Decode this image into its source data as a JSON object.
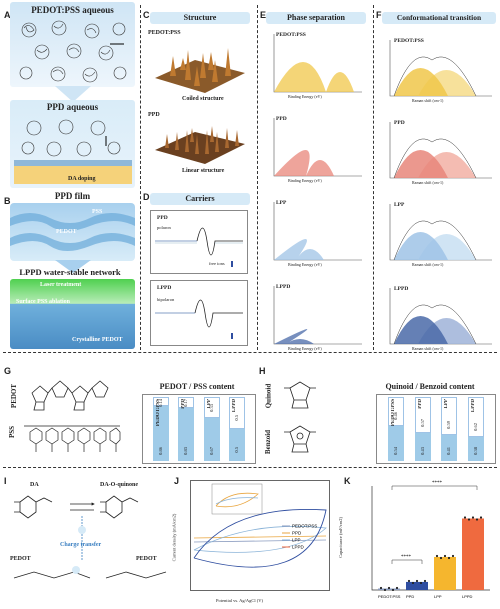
{
  "panelA": {
    "letter": "A",
    "title": "PEDOT:PSS aqueous",
    "ppd_label": "PPD aqueous",
    "da_label": "DA doping"
  },
  "panelB": {
    "letter": "B",
    "title": "PPD film",
    "pss": "PSS",
    "pedot": "PEDOT",
    "network": "LPPD water-stable network",
    "laser": "Laser treatment",
    "ablation": "Surface PSS ablation",
    "crystalline": "Crystalline PEDOT"
  },
  "panelC": {
    "letter": "C",
    "title": "Structure",
    "pedot_pss": "PEDOT:PSS",
    "coiled": "Coiled structure",
    "ppd": "PPD",
    "linear": "Linear structure"
  },
  "panelD": {
    "letter": "D",
    "title": "Carriers",
    "ppd": "PPD",
    "lppd": "LPPD",
    "polaron": "polaron",
    "bipolaron": "bipolaron",
    "free_ions": "free ions"
  },
  "panelE": {
    "letter": "E",
    "title": "Phase separation",
    "labels": [
      "PEDOT:PSS",
      "PPD",
      "LPP",
      "LPPD"
    ],
    "xlabel": "Binding Energy (eV)"
  },
  "panelF": {
    "letter": "F",
    "title": "Conformational transition",
    "labels": [
      "PEDOT:PSS",
      "PPD",
      "LPP",
      "LPPD"
    ],
    "xlabel": "Raman shift (cm-1)"
  },
  "panelG": {
    "letter": "G",
    "pedot": "PEDOT",
    "pss": "PSS",
    "title": "PEDOT / PSS content",
    "bars": [
      {
        "name": "PEDOT:PSS",
        "top": "0.14",
        "bottom": "0.86"
      },
      {
        "name": "PPD",
        "top": "0.17",
        "bottom": "0.83"
      },
      {
        "name": "LPP",
        "top": "0.33",
        "bottom": "0.67"
      },
      {
        "name": "LPPD",
        "top": "0.5",
        "bottom": "0.5"
      }
    ]
  },
  "panelH": {
    "letter": "H",
    "quinoid": "Quinoid",
    "benzoid": "Benzoid",
    "title": "Quinoid / Benzoid content",
    "bars": [
      {
        "name": "PEDOT:PSS",
        "top": "0.46",
        "bottom": "0.54"
      },
      {
        "name": "PPD",
        "top": "0.57",
        "bottom": "0.43"
      },
      {
        "name": "LPP",
        "top": "0.59",
        "bottom": "0.41"
      },
      {
        "name": "LPPD",
        "top": "0.62",
        "bottom": "0.38"
      }
    ]
  },
  "panelI": {
    "letter": "I",
    "da": "DA",
    "quinone": "DA-O-quinone",
    "charge": "Charge transfer",
    "pedot1": "PEDOT",
    "pedot2": "PEDOT"
  },
  "panelJ": {
    "letter": "J",
    "ylabel": "Current density (mA/cm2)",
    "xlabel": "Potential vs. Ag/AgCl (V)",
    "legend": [
      "PEDOT:PSS",
      "PPD",
      "LPP",
      "LPPD"
    ],
    "colors": [
      "#8a9bbf",
      "#e9a640",
      "#8ab3d8",
      "#ef6a3f"
    ]
  },
  "panelK": {
    "letter": "K",
    "ylabel": "Capacitance (mF/cm2)",
    "sig1": "****",
    "sig2": "****",
    "categories": [
      "PEDOT:PSS",
      "PPD",
      "LPP",
      "LPPD"
    ],
    "values": [
      0.4,
      3.1,
      12.7,
      27.5
    ],
    "ylim": [
      0,
      40
    ],
    "colors": [
      "#8a9bbf",
      "#2f4ea0",
      "#f5b62e",
      "#ef6a3f"
    ]
  }
}
